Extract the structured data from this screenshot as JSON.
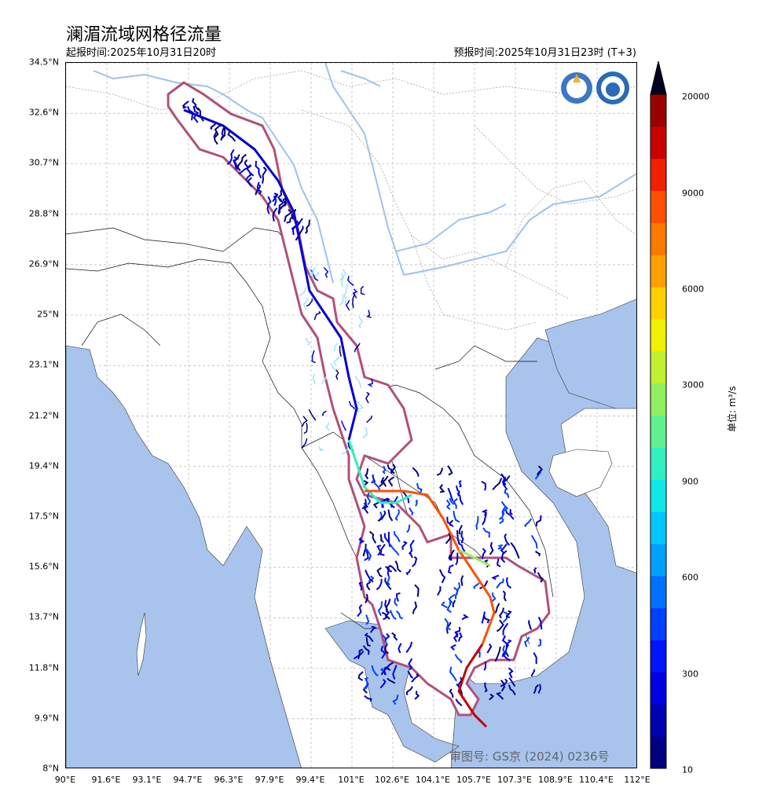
{
  "title": "澜湄流域网格径流量",
  "issue_time": "起报时间:2025年10月31日20时",
  "forecast_time": "预报时间:2025年10月31日23时 (T+3)",
  "approval_number": "审图号: GS京 (2024) 0236号",
  "lat_ticks": [
    "34.5°N",
    "32.6°N",
    "30.7°N",
    "28.8°N",
    "26.9°N",
    "25°N",
    "23.1°N",
    "21.2°N",
    "19.4°N",
    "17.5°N",
    "15.6°N",
    "13.7°N",
    "11.8°N",
    "9.9°N",
    "8°N"
  ],
  "lon_ticks": [
    "90°E",
    "91.6°E",
    "93.1°E",
    "94.7°E",
    "96.3°E",
    "97.9°E",
    "99.4°E",
    "101°E",
    "102.6°E",
    "104.1°E",
    "105.7°E",
    "107.3°E",
    "108.9°E",
    "110.4°E",
    "112°E"
  ],
  "colorbar": {
    "unit": "单位: m³/s",
    "tick_labels": [
      "20000",
      "9000",
      "6000",
      "3000",
      "900",
      "600",
      "300",
      "10"
    ],
    "colors": [
      "#000080",
      "#0000b0",
      "#0000e0",
      "#0014ff",
      "#0040ff",
      "#0070ff",
      "#00a0ff",
      "#00c8ff",
      "#10e8e8",
      "#30f0c0",
      "#60f090",
      "#90f060",
      "#c0f030",
      "#f0f000",
      "#ffd000",
      "#ffa000",
      "#ff7800",
      "#ff5000",
      "#f02000",
      "#c80000",
      "#9a0000"
    ]
  },
  "colors": {
    "sea": "#a9c4ec",
    "basin_outline": "#b0507a",
    "river": "#9fc2ea"
  },
  "icons": [
    "wmo-logo-icon",
    "cma-logo-icon"
  ]
}
